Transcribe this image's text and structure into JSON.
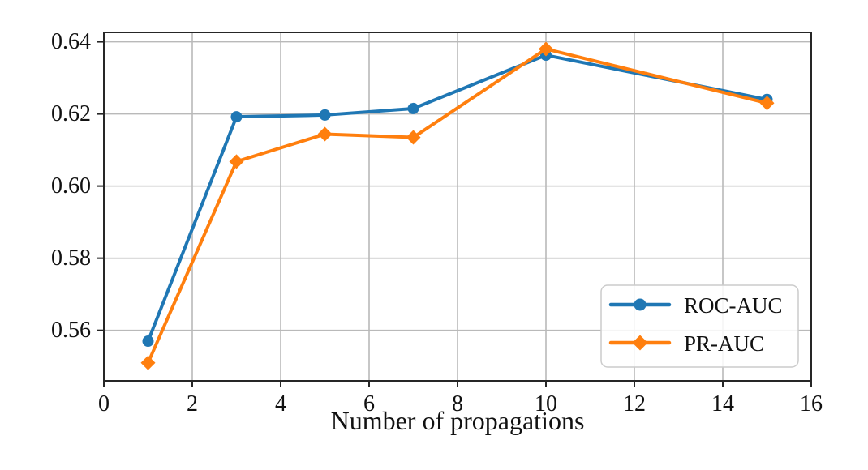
{
  "chart_data": {
    "type": "line",
    "title": "",
    "xlabel": "Number of propagations",
    "ylabel": "",
    "x": [
      1,
      3,
      5,
      7,
      10,
      15
    ],
    "series": [
      {
        "name": "ROC-AUC",
        "color": "#1f77b4",
        "marker": "circle",
        "values": [
          0.557,
          0.6192,
          0.6197,
          0.6215,
          0.6363,
          0.624
        ]
      },
      {
        "name": "PR-AUC",
        "color": "#ff7f0e",
        "marker": "diamond",
        "values": [
          0.551,
          0.6068,
          0.6144,
          0.6135,
          0.638,
          0.623
        ]
      }
    ],
    "xlim": [
      0,
      16
    ],
    "ylim": [
      0.546,
      0.6426
    ],
    "xticks": [
      0,
      2,
      4,
      6,
      8,
      10,
      12,
      14,
      16
    ],
    "xtick_labels": [
      "0",
      "2",
      "4",
      "6",
      "8",
      "10",
      "12",
      "14",
      "16"
    ],
    "yticks": [
      0.56,
      0.58,
      0.6,
      0.62,
      0.64
    ],
    "ytick_labels": [
      "0.56",
      "0.58",
      "0.60",
      "0.62",
      "0.64"
    ],
    "grid": true,
    "legend": {
      "position": "lower-right",
      "entries": [
        "ROC-AUC",
        "PR-AUC"
      ]
    },
    "colors": {
      "grid": "#b9b9b9",
      "spine": "#262626",
      "text": "#111111",
      "legend_border": "#cccccc",
      "legend_fill": "rgba(255,255,255,0.85)"
    }
  }
}
